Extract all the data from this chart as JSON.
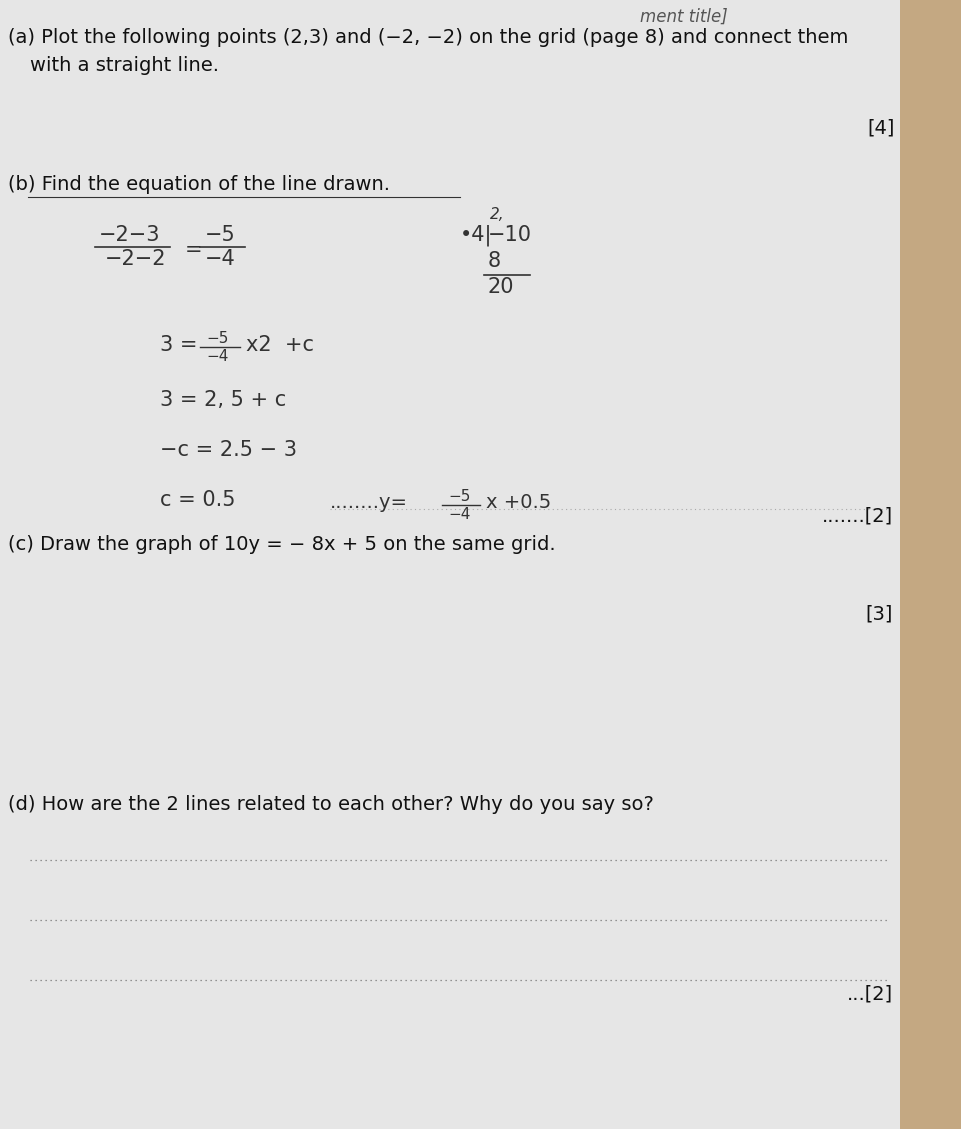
{
  "background_color": "#c8c8c8",
  "paper_color": "#e8e8e8",
  "title_fragment": "ment title]",
  "part_a_line1": "(a) Plot the following points (2,3) and (−2, −2) on the grid (page 8) and connect them",
  "part_a_line2": "     with a straight line.",
  "marks_a": "[4]",
  "part_b_label": "(b) Find the equation of the line drawn.",
  "marks_b": "[2]",
  "frac_lhs_num": "−2−3",
  "frac_lhs_den": "−2−2",
  "equals": "=",
  "frac_rhs_num": "−5",
  "frac_rhs_den": "−4",
  "div_top": "2,",
  "div_left": "•4|",
  "div_mid": "−10",
  "div_sub": "8",
  "div_result": "20",
  "work1_pre": "3 =",
  "work1_fnum": "−5",
  "work1_fden": "−4",
  "work1_suf": "x2  +c",
  "work2": "3 = 2, 5 + c",
  "work3": "−c = 2.5 − 3",
  "work4": "c = 0.5",
  "ans_prefix": "........y=",
  "ans_fnum": "−5",
  "ans_fden": "−4",
  "ans_suffix": "x +0.5",
  "part_c": "(c) Draw the graph of 10y = − 8x + 5 on the same grid.",
  "marks_c": "[3]",
  "part_d": "(d) How are the 2 lines related to each other? Why do you say so?",
  "marks_d": "...[2]",
  "dot_color": "#555555",
  "text_color": "#111111",
  "handwriting_color": "#333333",
  "font_size": 14,
  "font_size_small": 11,
  "font_size_title": 12
}
